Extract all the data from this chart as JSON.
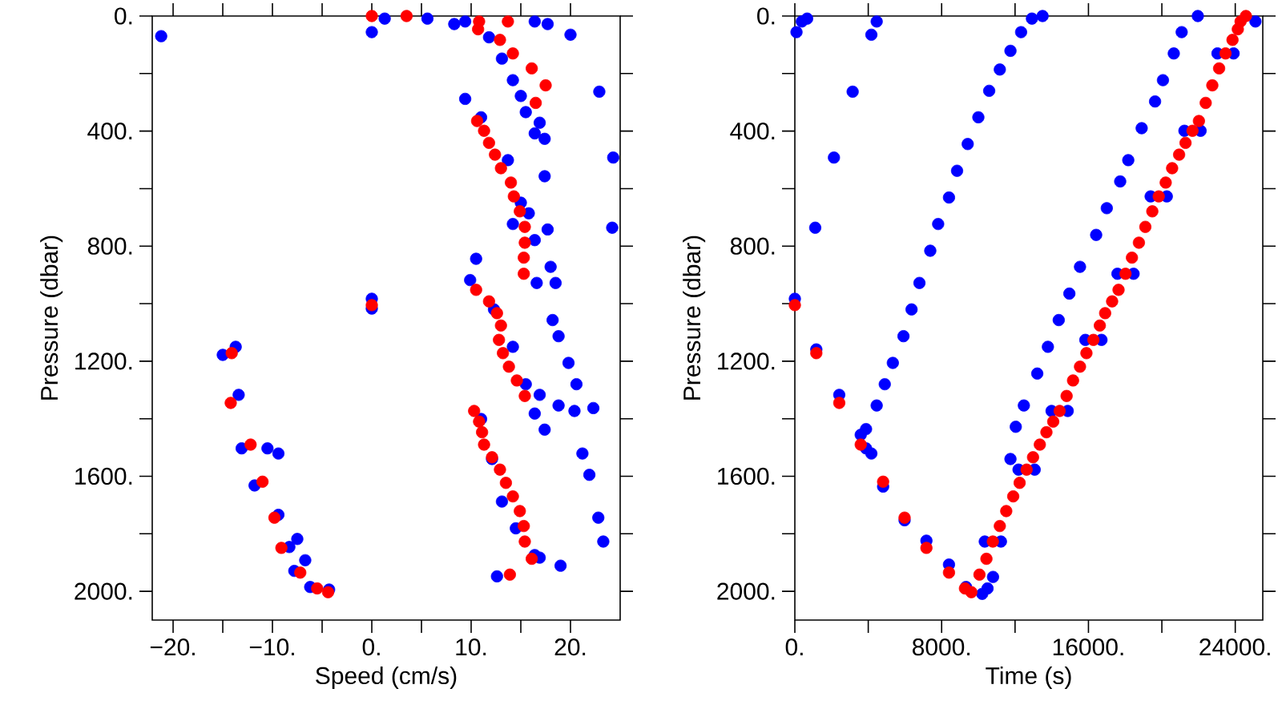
{
  "chart_data": [
    {
      "type": "scatter",
      "xlabel": "Speed (cm/s)",
      "ylabel": "Pressure (dbar)",
      "marker": "circle",
      "xlim": [
        -22.1,
        25
      ],
      "ylim": [
        2100,
        0
      ],
      "xticks": [
        {
          "value": -20,
          "label": "−20."
        },
        {
          "value": -15,
          "label": null
        },
        {
          "value": -10,
          "label": "−10."
        },
        {
          "value": -5,
          "label": null
        },
        {
          "value": 0,
          "label": "0."
        },
        {
          "value": 5,
          "label": null
        },
        {
          "value": 10,
          "label": "10."
        },
        {
          "value": 15,
          "label": null
        },
        {
          "value": 20,
          "label": "20."
        }
      ],
      "yticks": [
        {
          "value": 0,
          "label": "0."
        },
        {
          "value": 200,
          "label": null
        },
        {
          "value": 400,
          "label": "400."
        },
        {
          "value": 600,
          "label": null
        },
        {
          "value": 800,
          "label": "800."
        },
        {
          "value": 1000,
          "label": null
        },
        {
          "value": 1200,
          "label": "1200."
        },
        {
          "value": 1400,
          "label": null
        },
        {
          "value": 1600,
          "label": "1600."
        },
        {
          "value": 1800,
          "label": null
        },
        {
          "value": 2000,
          "label": "2000."
        }
      ],
      "series": [
        {
          "color": "#0000ff",
          "x": [
            -21.2,
            0,
            20.0,
            22.9,
            24.3,
            24.2,
            0,
            0,
            1.3,
            5.6,
            8.3,
            9.4,
            16.4,
            17.7,
            11.8,
            13.1,
            14.2,
            15.5,
            16.4,
            16.9,
            15.0,
            17.4,
            17.4,
            17.7,
            18.0,
            18.5,
            18.2,
            18.8,
            19.8,
            20.6,
            20.4,
            22.3,
            21.2,
            21.9,
            22.8,
            23.3,
            19.0,
            9.4,
            11.0,
            13.7,
            15.0,
            16.4,
            16.6,
            15.8,
            14.2,
            10.5,
            9.9,
            12.3,
            14.2,
            15.5,
            16.4,
            17.4,
            16.9,
            18.8,
            11.0,
            12.1,
            13.1,
            14.5,
            16.4,
            16.9,
            12.6,
            -15.0,
            -13.7,
            -13.4,
            -13.1,
            -10.5,
            -9.4,
            -11.8,
            -9.4,
            -8.3,
            -7.5,
            -7.8,
            -6.7,
            -6.2,
            -4.3
          ],
          "values": [
            70,
            56,
            65,
            263,
            492,
            736,
            983,
            1017,
            9,
            9,
            28,
            19,
            19,
            28,
            74,
            148,
            223,
            334,
            408,
            371,
            278,
            427,
            557,
            742,
            872,
            928,
            1057,
            1113,
            1206,
            1280,
            1373,
            1363,
            1521,
            1595,
            1744,
            1827,
            1911,
            288,
            352,
            501,
            649,
            779,
            928,
            686,
            723,
            844,
            918,
            1020,
            1150,
            1280,
            1382,
            1438,
            1317,
            1354,
            1401,
            1540,
            1688,
            1781,
            1874,
            1883,
            1948,
            1178,
            1150,
            1317,
            1503,
            1503,
            1521,
            1632,
            1734,
            1846,
            1818,
            1929,
            1892,
            1985,
            1994
          ]
        },
        {
          "color": "#ff0000",
          "x": [
            0,
            3.5,
            10.8,
            13.7,
            10.7,
            12.9,
            14.2,
            16.1,
            17.5,
            16.5,
            10.6,
            11.3,
            11.8,
            12.4,
            13.0,
            14.0,
            14.3,
            14.9,
            15.4,
            15.4,
            15.3,
            15.3,
            0,
            10.5,
            11.8,
            12.6,
            13.0,
            12.8,
            13.2,
            13.8,
            14.6,
            15.4,
            10.3,
            10.8,
            11.1,
            11.3,
            12.1,
            12.9,
            13.5,
            14.2,
            14.9,
            15.3,
            15.4,
            16.1,
            13.9,
            -14.1,
            -14.2,
            -12.2,
            -11.0,
            -9.8,
            -9.1,
            -7.2,
            -5.5,
            -4.4
          ],
          "values": [
            0,
            0,
            19,
            19,
            46,
            83,
            130,
            182,
            241,
            302,
            365,
            399,
            441,
            482,
            529,
            579,
            627,
            679,
            733,
            788,
            840,
            896,
            1005,
            952,
            992,
            1033,
            1076,
            1126,
            1172,
            1219,
            1267,
            1321,
            1373,
            1410,
            1447,
            1490,
            1534,
            1577,
            1623,
            1670,
            1721,
            1773,
            1827,
            1887,
            1942,
            1172,
            1345,
            1490,
            1619,
            1744,
            1849,
            1935,
            1990,
            2003
          ]
        }
      ]
    },
    {
      "type": "scatter",
      "xlabel": "Time (s)",
      "ylabel": "Pressure (dbar)",
      "marker": "circle",
      "xlim": [
        0,
        25500
      ],
      "ylim": [
        2100,
        0
      ],
      "xticks": [
        {
          "value": 0,
          "label": "0."
        },
        {
          "value": 4000,
          "label": null
        },
        {
          "value": 8000,
          "label": "8000."
        },
        {
          "value": 12000,
          "label": null
        },
        {
          "value": 16000,
          "label": "16000."
        },
        {
          "value": 20000,
          "label": null
        },
        {
          "value": 24000,
          "label": "24000."
        }
      ],
      "yticks": [
        {
          "value": 0,
          "label": "0."
        },
        {
          "value": 200,
          "label": null
        },
        {
          "value": 400,
          "label": "400."
        },
        {
          "value": 600,
          "label": null
        },
        {
          "value": 800,
          "label": "800."
        },
        {
          "value": 1000,
          "label": null
        },
        {
          "value": 1200,
          "label": "1200."
        },
        {
          "value": 1400,
          "label": null
        },
        {
          "value": 1600,
          "label": "1600."
        },
        {
          "value": 1800,
          "label": null
        },
        {
          "value": 2000,
          "label": "2000."
        }
      ],
      "series": [
        {
          "color": "#0000ff",
          "x": [
            90,
            380,
            670,
            4170,
            4460,
            3150,
            2130,
            1110,
            0,
            1170,
            2420,
            3590,
            3880,
            4170,
            4810,
            5980,
            7170,
            8400,
            9330,
            10210,
            3880,
            4460,
            4900,
            5340,
            5920,
            6360,
            6790,
            7380,
            7810,
            8400,
            8840,
            9420,
            10000,
            10590,
            11170,
            11750,
            12330,
            12920,
            13500,
            11750,
            12040,
            12480,
            13210,
            13790,
            14380,
            14960,
            15540,
            16420,
            17000,
            17730,
            18170,
            18900,
            19630,
            20060,
            20650,
            21080,
            21960,
            10350,
            11230,
            12190,
            13070,
            13990,
            14870,
            15830,
            16710,
            17580,
            18460,
            19390,
            20270,
            21230,
            22110,
            23030,
            23910,
            25100,
            10500,
            10800
          ],
          "values": [
            56,
            19,
            9,
            65,
            19,
            263,
            492,
            736,
            983,
            1159,
            1317,
            1456,
            1503,
            1521,
            1636,
            1753,
            1824,
            1907,
            1985,
            2009,
            1436,
            1354,
            1280,
            1206,
            1113,
            1020,
            928,
            816,
            723,
            631,
            538,
            445,
            352,
            260,
            186,
            121,
            56,
            9,
            0,
            1540,
            1428,
            1354,
            1243,
            1150,
            1057,
            965,
            872,
            761,
            668,
            575,
            501,
            390,
            297,
            223,
            130,
            56,
            0,
            1827,
            1827,
            1577,
            1577,
            1373,
            1373,
            1126,
            1126,
            896,
            896,
            627,
            627,
            399,
            399,
            130,
            130,
            19,
            1990,
            1950
          ]
        },
        {
          "color": "#ff0000",
          "x": [
            0,
            1170,
            2420,
            3590,
            4810,
            5980,
            7170,
            8400,
            9270,
            9620,
            10060,
            10440,
            10790,
            11170,
            11520,
            11900,
            12250,
            12630,
            12980,
            13350,
            13710,
            14080,
            14430,
            14810,
            15160,
            15540,
            15890,
            16270,
            16620,
            16910,
            17290,
            17640,
            18020,
            18370,
            18750,
            19100,
            19480,
            19830,
            20210,
            20560,
            20940,
            21290,
            21670,
            22020,
            22390,
            22750,
            23120,
            23470,
            23850,
            24140,
            24290,
            24580
          ],
          "values": [
            1005,
            1172,
            1345,
            1490,
            1619,
            1744,
            1849,
            1935,
            1990,
            2003,
            1942,
            1887,
            1827,
            1773,
            1721,
            1670,
            1623,
            1577,
            1534,
            1490,
            1447,
            1410,
            1373,
            1321,
            1267,
            1219,
            1172,
            1126,
            1076,
            1033,
            992,
            952,
            896,
            840,
            788,
            733,
            679,
            627,
            579,
            529,
            482,
            441,
            399,
            365,
            302,
            241,
            182,
            130,
            83,
            46,
            19,
            0
          ]
        }
      ]
    }
  ]
}
